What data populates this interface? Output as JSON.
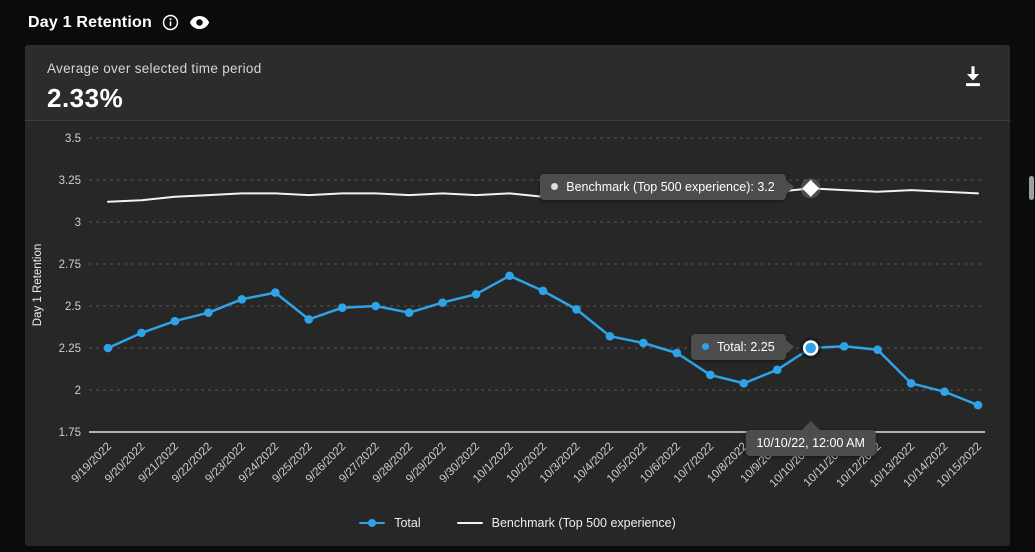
{
  "header": {
    "title": "Day 1 Retention"
  },
  "summary": {
    "label": "Average over selected time period",
    "value": "2.33%"
  },
  "chart_data": {
    "type": "line",
    "title": "Day 1 Retention",
    "xlabel": "",
    "ylabel": "Day 1 Retention",
    "ylim": [
      1.75,
      3.5
    ],
    "yticks": [
      3.5,
      3.25,
      3,
      2.75,
      2.5,
      2.25,
      2,
      1.75
    ],
    "grid": "horizontal-dashed",
    "legend_position": "bottom-center",
    "categories": [
      "9/19/2022",
      "9/20/2022",
      "9/21/2022",
      "9/22/2022",
      "9/23/2022",
      "9/24/2022",
      "9/25/2022",
      "9/26/2022",
      "9/27/2022",
      "9/28/2022",
      "9/29/2022",
      "9/30/2022",
      "10/1/2022",
      "10/2/2022",
      "10/3/2022",
      "10/4/2022",
      "10/5/2022",
      "10/6/2022",
      "10/7/2022",
      "10/8/2022",
      "10/9/2022",
      "10/10/2022",
      "10/11/2022",
      "10/12/2022",
      "10/13/2022",
      "10/14/2022",
      "10/15/2022"
    ],
    "series": [
      {
        "name": "Total",
        "color": "#2ea3e8",
        "marker": "circle",
        "values": [
          2.25,
          2.34,
          2.41,
          2.46,
          2.54,
          2.58,
          2.42,
          2.49,
          2.5,
          2.46,
          2.52,
          2.57,
          2.68,
          2.59,
          2.48,
          2.32,
          2.28,
          2.22,
          2.09,
          2.04,
          2.12,
          2.25,
          2.26,
          2.24,
          2.04,
          1.99,
          1.91
        ]
      },
      {
        "name": "Benchmark (Top 500 experience)",
        "color": "#f2f2f2",
        "marker": "none",
        "values": [
          3.12,
          3.13,
          3.15,
          3.16,
          3.17,
          3.17,
          3.16,
          3.17,
          3.17,
          3.16,
          3.17,
          3.16,
          3.17,
          3.15,
          3.15,
          3.16,
          3.16,
          3.17,
          3.18,
          3.17,
          3.18,
          3.2,
          3.19,
          3.18,
          3.19,
          3.18,
          3.17
        ]
      }
    ],
    "highlight": {
      "index": 21,
      "date_text": "10/10/22, 12:00 AM",
      "total_value": 2.25,
      "benchmark_value": 3.2,
      "total_text": "Total: 2.25",
      "benchmark_text": "Benchmark (Top 500 experience): 3.2"
    }
  },
  "legend": {
    "items": [
      {
        "label": "Total",
        "color": "#2ea3e8",
        "marker": "line-dot"
      },
      {
        "label": "Benchmark (Top 500 experience)",
        "color": "#f2f2f2",
        "marker": "line"
      }
    ]
  },
  "colors": {
    "card_bg": "#272727",
    "tooltip_bg": "#4d4d4d",
    "grid": "#575757",
    "axis": "#e0e0e0",
    "tick_label": "#cfcfcf"
  }
}
